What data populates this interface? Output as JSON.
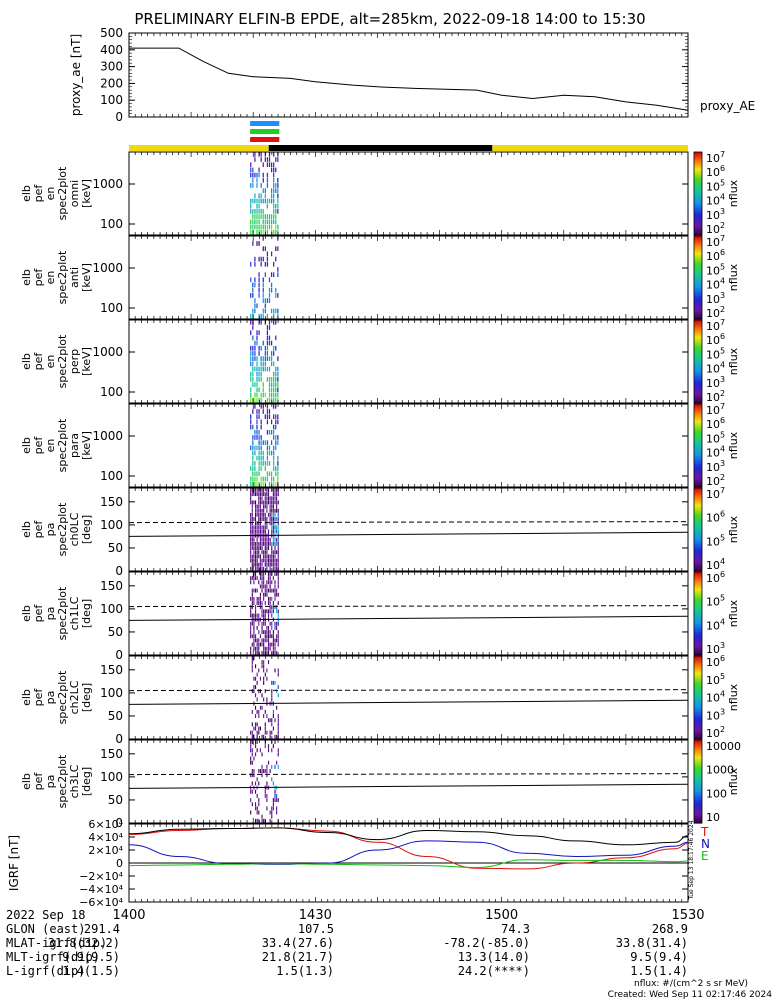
{
  "title": "PRELIMINARY ELFIN-B EPDE, alt=285km, 2022-09-18 14:00 to 15:30",
  "colors": {
    "sunlight": "#f2d90f",
    "eclipse": "#000000",
    "bar_blue": "#1f8fff",
    "bar_green": "#1fd11f",
    "bar_red": "#e01010",
    "bx": "#e01010",
    "by": "#1010c0",
    "bz": "#10c010",
    "btot": "#000000"
  },
  "chart_data": [
    {
      "type": "line",
      "panel": "proxy_ae",
      "ylabel": "proxy_ae [nT]",
      "ylim": [
        0,
        500
      ],
      "yticks": [
        "500",
        "400",
        "300",
        "200",
        "100",
        "0"
      ],
      "legend": "proxy_AE",
      "x_min": [
        0,
        8,
        12,
        16,
        20,
        26,
        30,
        36,
        40,
        46,
        56,
        60,
        65,
        70,
        75,
        80,
        85,
        90
      ],
      "y": [
        410,
        410,
        330,
        260,
        240,
        230,
        210,
        190,
        180,
        170,
        160,
        130,
        110,
        130,
        120,
        90,
        70,
        40
      ]
    },
    {
      "type": "timeline-bars",
      "panel": "science-zone-bars",
      "bars": [
        {
          "color": "blue",
          "start_min": 19.5,
          "end_min": 24.2
        },
        {
          "color": "green",
          "start_min": 19.5,
          "end_min": 24.2
        },
        {
          "color": "red",
          "start_min": 19.5,
          "end_min": 24.2
        }
      ]
    },
    {
      "type": "timeline",
      "panel": "sunlight-eclipse",
      "segments": [
        {
          "state": "sunlight",
          "start_min": 0,
          "end_min": 22.5
        },
        {
          "state": "eclipse",
          "start_min": 22.5,
          "end_min": 58.5
        },
        {
          "state": "sunlight",
          "start_min": 58.5,
          "end_min": 90
        }
      ]
    },
    {
      "type": "heatmap",
      "panel": "spec-omni",
      "ylabel_lines": [
        "elb",
        "pef",
        "en",
        "spec2plot",
        "omni",
        "[keV]"
      ],
      "yticks": [
        "1000",
        "100"
      ],
      "zlabel": "nflux",
      "colorbar_ticks": [
        "10^7",
        "10^6",
        "10^5",
        "10^4",
        "10^3",
        "10^2"
      ],
      "active_window_min": [
        19.5,
        24.2
      ]
    },
    {
      "type": "heatmap",
      "panel": "spec-anti",
      "ylabel_lines": [
        "elb",
        "pef",
        "en",
        "spec2plot",
        "anti",
        "[keV]"
      ],
      "yticks": [
        "1000",
        "100"
      ],
      "zlabel": "nflux",
      "colorbar_ticks": [
        "10^7",
        "10^6",
        "10^5",
        "10^4",
        "10^3",
        "10^2"
      ],
      "active_window_min": [
        19.5,
        24.2
      ]
    },
    {
      "type": "heatmap",
      "panel": "spec-perp",
      "ylabel_lines": [
        "elb",
        "pef",
        "en",
        "spec2plot",
        "perp",
        "[keV]"
      ],
      "yticks": [
        "1000",
        "100"
      ],
      "zlabel": "nflux",
      "colorbar_ticks": [
        "10^7",
        "10^6",
        "10^5",
        "10^4",
        "10^3",
        "10^2"
      ],
      "active_window_min": [
        19.5,
        24.2
      ]
    },
    {
      "type": "heatmap",
      "panel": "spec-para",
      "ylabel_lines": [
        "elb",
        "pef",
        "en",
        "spec2plot",
        "para",
        "[keV]"
      ],
      "yticks": [
        "1000",
        "100"
      ],
      "zlabel": "nflux",
      "colorbar_ticks": [
        "10^7",
        "10^6",
        "10^5",
        "10^4",
        "10^3",
        "10^2"
      ],
      "active_window_min": [
        19.5,
        24.2
      ]
    },
    {
      "type": "heatmap",
      "panel": "pa-ch0",
      "ylabel_lines": [
        "elb",
        "pef",
        "pa",
        "spec2plot",
        "ch0LC",
        "[deg]"
      ],
      "yticks": [
        "150",
        "100",
        "50",
        "0"
      ],
      "ylim": [
        0,
        180
      ],
      "zlabel": "nflux",
      "colorbar_ticks": [
        "10^7",
        "10^6",
        "10^5",
        "10^4"
      ],
      "lc_solid_deg": [
        75,
        84
      ],
      "lc_dashed_deg": [
        105,
        107
      ],
      "active_window_min": [
        19.5,
        24.2
      ]
    },
    {
      "type": "heatmap",
      "panel": "pa-ch1",
      "ylabel_lines": [
        "elb",
        "pef",
        "pa",
        "spec2plot",
        "ch1LC",
        "[deg]"
      ],
      "yticks": [
        "150",
        "100",
        "50",
        "0"
      ],
      "ylim": [
        0,
        180
      ],
      "zlabel": "nflux",
      "colorbar_ticks": [
        "10^6",
        "10^5",
        "10^4",
        "10^3"
      ],
      "lc_solid_deg": [
        75,
        84
      ],
      "lc_dashed_deg": [
        105,
        107
      ],
      "active_window_min": [
        19.5,
        24.2
      ]
    },
    {
      "type": "heatmap",
      "panel": "pa-ch2",
      "ylabel_lines": [
        "elb",
        "pef",
        "pa",
        "spec2plot",
        "ch2LC",
        "[deg]"
      ],
      "yticks": [
        "150",
        "100",
        "50",
        "0"
      ],
      "ylim": [
        0,
        180
      ],
      "zlabel": "nflux",
      "colorbar_ticks": [
        "10^6",
        "10^5",
        "10^4",
        "10^3",
        "10^2"
      ],
      "lc_solid_deg": [
        75,
        84
      ],
      "lc_dashed_deg": [
        105,
        107
      ],
      "active_window_min": [
        19.5,
        24.2
      ]
    },
    {
      "type": "heatmap",
      "panel": "pa-ch3",
      "ylabel_lines": [
        "elb",
        "pef",
        "pa",
        "spec2plot",
        "ch3LC",
        "[deg]"
      ],
      "yticks": [
        "150",
        "100",
        "50",
        "0"
      ],
      "ylim": [
        0,
        180
      ],
      "zlabel": "nflux",
      "colorbar_ticks": [
        "10000",
        "1000",
        "100",
        "10"
      ],
      "lc_solid_deg": [
        75,
        84
      ],
      "lc_dashed_deg": [
        105,
        107
      ],
      "active_window_min": [
        19.5,
        24.2
      ]
    },
    {
      "type": "line",
      "panel": "igrf",
      "ylabel": "IGRF [nT]",
      "ylim": [
        -60000,
        60000
      ],
      "yticks": [
        "6×10⁴",
        "4×10⁴",
        "2×10⁴",
        "0",
        "−2×10⁴",
        "−4×10⁴",
        "−6×10⁴"
      ],
      "legend": [
        "T",
        "N",
        "E"
      ],
      "side_text": "Tue Sep 13 18:17:46 2024",
      "x_min": [
        0,
        8,
        16,
        24,
        32,
        40,
        48,
        56,
        64,
        72,
        80,
        88,
        90
      ],
      "series": [
        {
          "name": "T",
          "y": [
            44000,
            50000,
            53000,
            54000,
            49000,
            32000,
            10000,
            -8000,
            -9000,
            0,
            8000,
            22000,
            30000
          ]
        },
        {
          "name": "N",
          "y": [
            28000,
            10000,
            -1000,
            -2000,
            -100,
            20000,
            34000,
            32000,
            15000,
            10000,
            12000,
            26000,
            32000
          ]
        },
        {
          "name": "E",
          "y": [
            -4000,
            -3000,
            -2000,
            -1000,
            -2000,
            -3000,
            -4000,
            -7000,
            5000,
            4000,
            4000,
            2000,
            3000
          ]
        },
        {
          "name": "Btot",
          "y": [
            45000,
            52000,
            53000,
            54000,
            47000,
            36000,
            50000,
            48000,
            42000,
            34000,
            28000,
            32000,
            42000
          ]
        }
      ]
    }
  ],
  "xaxis": {
    "ticks": [
      "1400",
      "1430",
      "1500",
      "1530"
    ],
    "ticks_min": [
      0,
      30,
      60,
      90
    ]
  },
  "ephemeris": {
    "rows": [
      {
        "label": "2022 Sep 18",
        "values": [
          "",
          "",
          "",
          ""
        ]
      },
      {
        "label": "GLON (east)",
        "values": [
          "291.4",
          "107.5",
          "74.3",
          "268.9"
        ]
      },
      {
        "label": "MLAT-igrf(dip)",
        "values": [
          "31.8(32.2)",
          "33.4(27.6)",
          "-78.2(-85.0)",
          "33.8(31.4)"
        ]
      },
      {
        "label": "MLT-igrf(dip)",
        "values": [
          "9.9(9.5)",
          "21.8(21.7)",
          "13.3(14.0)",
          "9.5(9.4)"
        ]
      },
      {
        "label": "L-igrf(dip)",
        "values": [
          "1.4(1.5)",
          "1.5(1.3)",
          "24.2(****)",
          "1.5(1.4)"
        ]
      }
    ]
  },
  "footer": {
    "units": "nflux: #/(cm^2 s sr MeV)",
    "created": "Created: Wed Sep 11 02:17:46 2024"
  }
}
